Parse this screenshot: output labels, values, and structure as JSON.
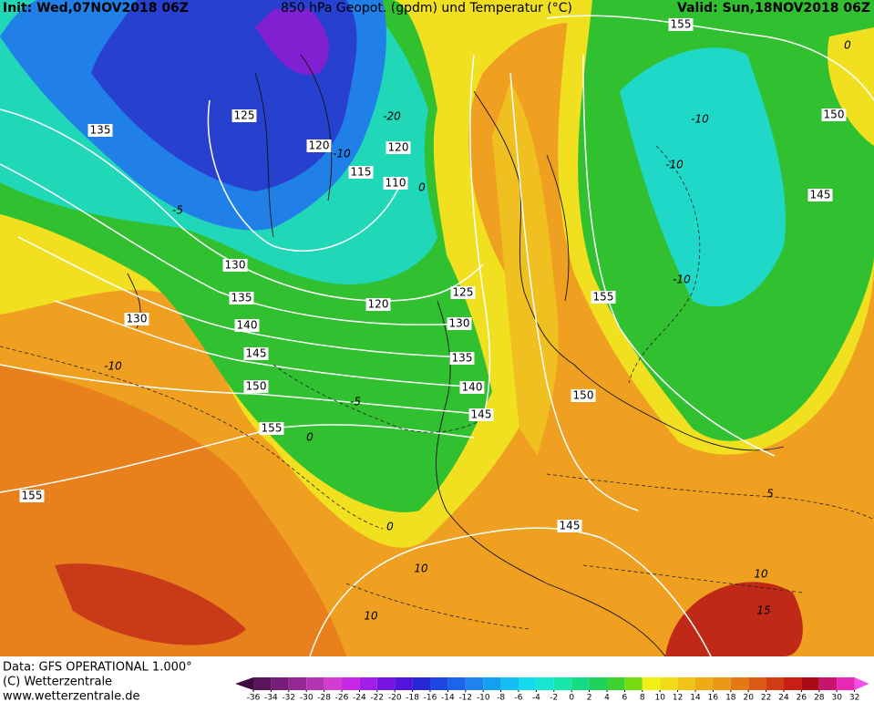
{
  "header": {
    "init": "Init: Wed,07NOV2018 06Z",
    "title": "850 hPa Geopot. (gpdm) und Temperatur (°C)",
    "valid": "Valid: Sun,18NOV2018 06Z"
  },
  "geopotential_labels": [
    "135",
    "125",
    "120",
    "120",
    "115",
    "110",
    "130",
    "135",
    "140",
    "145",
    "150",
    "155",
    "155",
    "120",
    "125",
    "130",
    "135",
    "140",
    "145",
    "150",
    "155",
    "145",
    "155",
    "150",
    "145",
    "130"
  ],
  "temperature_labels": [
    "-20",
    "-10",
    "-5",
    "0",
    "-10",
    "-10",
    "-10",
    "0",
    "-5",
    "-10",
    "0",
    "0",
    "5",
    "10",
    "10",
    "10",
    "15"
  ],
  "footer": {
    "data": "Data: GFS OPERATIONAL 1.000°",
    "copyright": "(C) Wetterzentrale",
    "url": "www.wetterzentrale.de"
  },
  "colorbar": {
    "ticks": [
      -36,
      -34,
      -32,
      -30,
      -28,
      -26,
      -24,
      -22,
      -20,
      -18,
      -16,
      -14,
      -12,
      -10,
      -8,
      -6,
      -4,
      -2,
      0,
      2,
      4,
      6,
      8,
      10,
      12,
      14,
      16,
      18,
      20,
      22,
      24,
      26,
      28,
      30,
      32
    ],
    "colors": [
      "#3c0a3c",
      "#5a145a",
      "#781e78",
      "#962896",
      "#b432b4",
      "#d23cd2",
      "#c828e6",
      "#a01ee6",
      "#7814e1",
      "#5014dc",
      "#2828d7",
      "#1e46e1",
      "#1e64eb",
      "#1e82f0",
      "#14a0f0",
      "#14bef0",
      "#14dcf0",
      "#14e6d2",
      "#14e6aa",
      "#14dc82",
      "#1ed25a",
      "#3cd232",
      "#78dc14",
      "#f0f014",
      "#f0dc14",
      "#f0c314",
      "#f0aa14",
      "#eb9614",
      "#e67814",
      "#dc5a14",
      "#d23c14",
      "#c81e14",
      "#aa0a14",
      "#c8146e",
      "#e628b4",
      "#f050e6"
    ]
  }
}
